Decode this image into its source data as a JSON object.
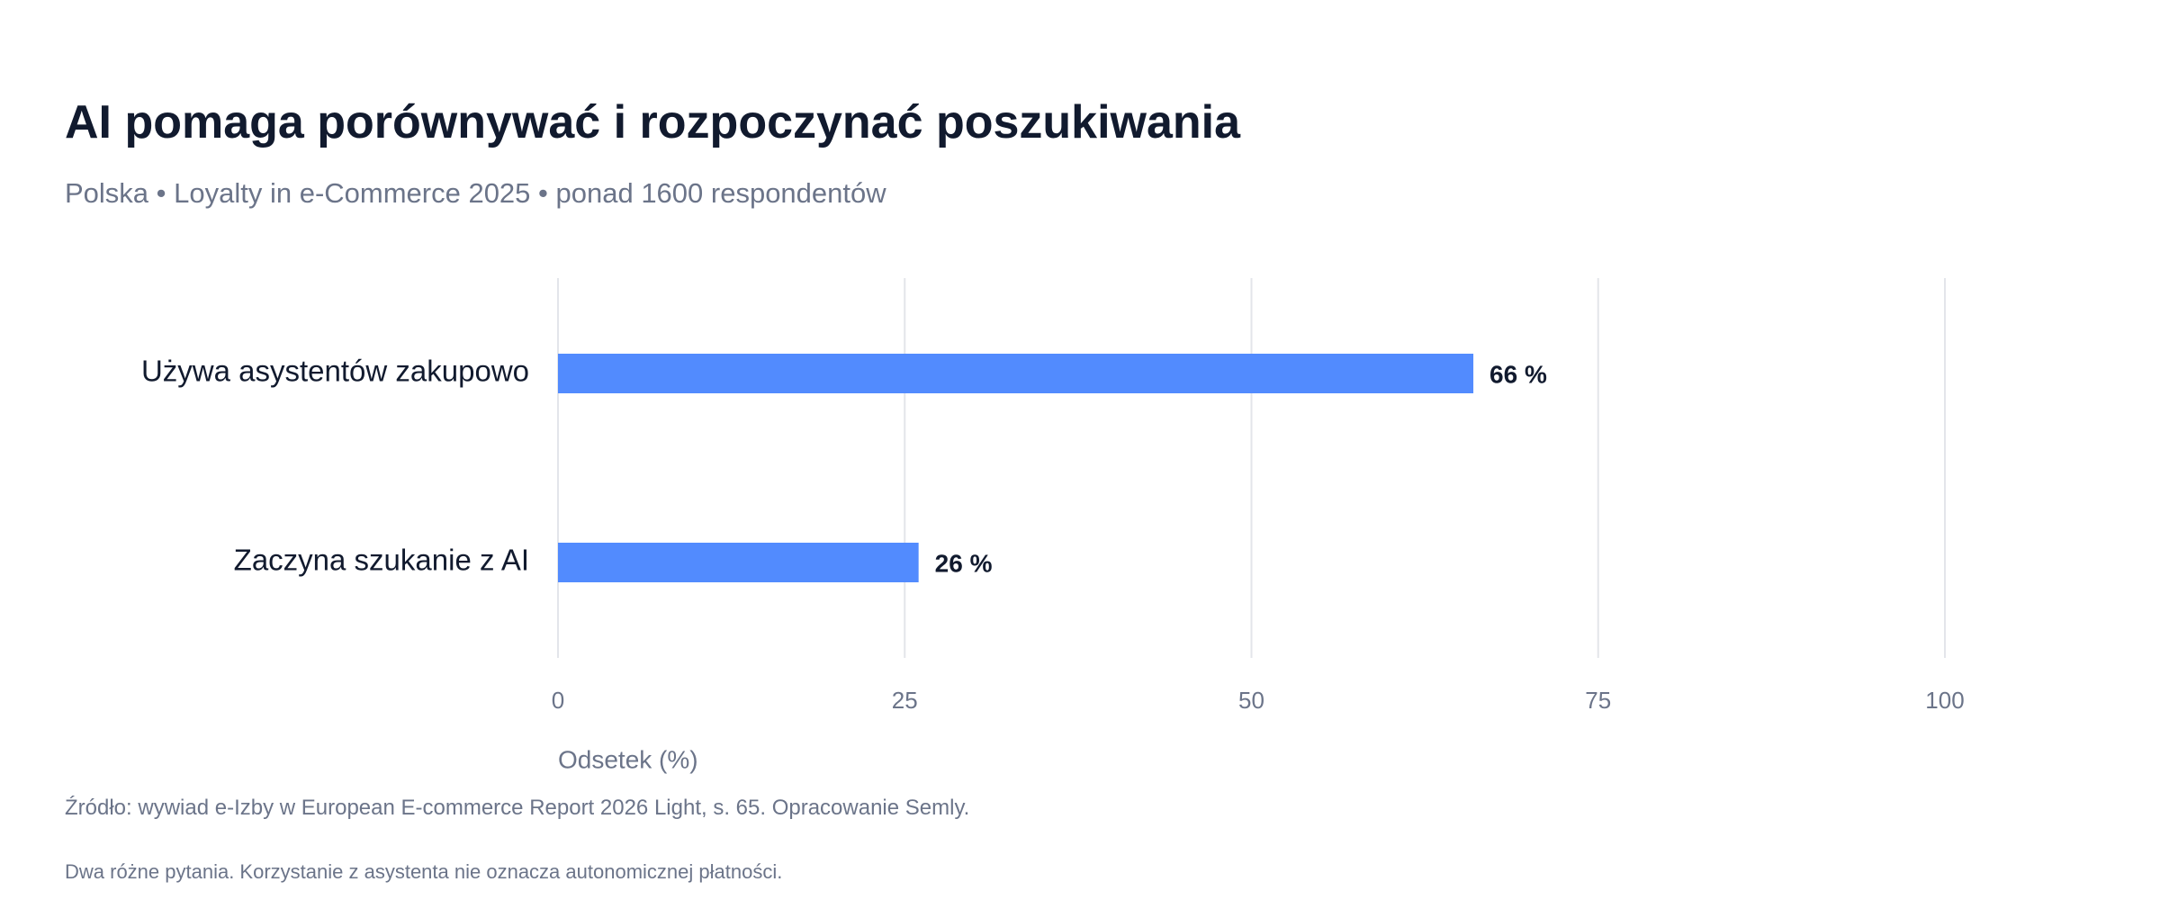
{
  "header": {
    "title": "AI pomaga porównywać i rozpoczynać poszukiwania",
    "subtitle": "Polska • Loyalty in e-Commerce 2025 • ponad 1600 respondentów"
  },
  "footer": {
    "source": "Źródło: wywiad e-Izby w European E-commerce Report 2026 Light, s. 65. Opracowanie Semly.",
    "note": "Dwa różne pytania. Korzystanie z asystenta nie oznacza autonomicznej płatności."
  },
  "colors": {
    "bar": "#528bfe",
    "grid": "#e3e5ea",
    "title": "#111a2e",
    "muted": "#6b7489"
  },
  "chart_data": {
    "type": "bar",
    "orientation": "horizontal",
    "title": "AI pomaga porównywać i rozpoczynać poszukiwania",
    "subtitle": "Polska • Loyalty in e-Commerce 2025 • ponad 1600 respondentów",
    "xlabel": "Odsetek (%)",
    "ylabel": "",
    "categories": [
      "Używa asystentów zakupowo",
      "Zaczyna szukanie z AI"
    ],
    "values": [
      66,
      26
    ],
    "value_labels": [
      "66 %",
      "26 %"
    ],
    "xlim": [
      0,
      100
    ],
    "xticks": [
      0,
      25,
      50,
      75,
      100
    ],
    "xtick_labels": [
      "0",
      "25",
      "50",
      "75",
      "100"
    ],
    "grid": "vertical",
    "legend": "none"
  }
}
